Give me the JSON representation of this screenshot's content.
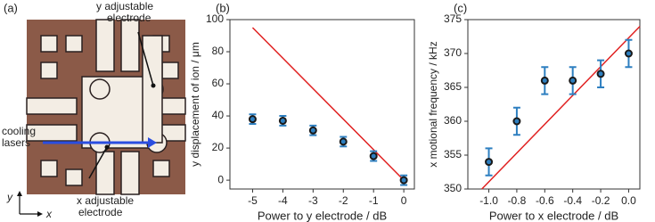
{
  "figure_a": {
    "label": "(a)",
    "y_electrode": [
      "y adjustable",
      "electrode"
    ],
    "cooling": [
      "cooling",
      "lasers"
    ],
    "x_electrode": [
      "x adjustable",
      "electrode"
    ],
    "axis_y": "y",
    "axis_x": "x"
  },
  "chart_data": [
    {
      "type": "scatter",
      "label": "(b)",
      "xlabel": "Power to y electrode / dB",
      "ylabel": "y displacement of ion / μm",
      "x": [
        -5,
        -4,
        -3,
        -2,
        -1,
        0
      ],
      "values": [
        38,
        37,
        31,
        24,
        15,
        0
      ],
      "errors": [
        3,
        3,
        3,
        3,
        3,
        3
      ],
      "color": "#2d7fc0",
      "marker_color": "#1a1a1a",
      "line": {
        "x": [
          -5,
          0
        ],
        "values": [
          95,
          0
        ],
        "color": "#e02020"
      },
      "xlim": [
        -5.75,
        0.35
      ],
      "xticks": [
        -5,
        -4,
        -3,
        -2,
        -1,
        0
      ],
      "ylim": [
        -5.5,
        100
      ],
      "yticks": [
        0,
        20,
        40,
        60,
        80,
        100
      ]
    },
    {
      "type": "scatter",
      "label": "(c)",
      "xlabel": "Power to x electrode / dB",
      "ylabel": "x motional frequency / kHz",
      "x": [
        -1.0,
        -0.8,
        -0.6,
        -0.4,
        -0.2,
        0.0
      ],
      "values": [
        354,
        360,
        366,
        366,
        367,
        370
      ],
      "errors": [
        2,
        2,
        2,
        2,
        2,
        2
      ],
      "color": "#2d7fc0",
      "marker_color": "#1a1a1a",
      "line": {
        "x": [
          -1.05,
          0.08
        ],
        "values": [
          350,
          374
        ],
        "color": "#e02020"
      },
      "xlim": [
        -1.15,
        0.08
      ],
      "xticks": [
        {
          "value": -1.0,
          "label": "-1.0"
        },
        {
          "value": -0.8,
          "label": "-0.8"
        },
        {
          "value": -0.6,
          "label": "-0.6"
        },
        {
          "value": -0.4,
          "label": "-0.4"
        },
        {
          "value": -0.2,
          "label": "-0.2"
        },
        {
          "value": 0.0,
          "label": "0.0"
        }
      ],
      "ylim": [
        350,
        375
      ],
      "yticks": [
        350,
        355,
        360,
        365,
        370,
        375
      ]
    }
  ]
}
